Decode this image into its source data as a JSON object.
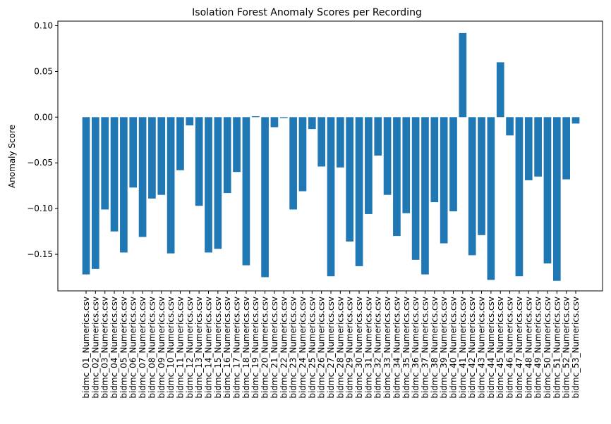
{
  "chart_data": {
    "type": "bar",
    "title": "Isolation Forest Anomaly Scores per Recording",
    "xlabel": "",
    "ylabel": "Anomaly Score",
    "ylim": [
      -0.19,
      0.105
    ],
    "yticks": [
      0.1,
      0.05,
      0.0,
      -0.05,
      -0.1,
      -0.15
    ],
    "ytick_labels": [
      "0.10",
      "0.05",
      "0.00",
      "−0.05",
      "−0.10",
      "−0.15"
    ],
    "grid": false,
    "bar_color": "#1f77b4",
    "categories": [
      "bidmc_01_Numerics.csv",
      "bidmc_02_Numerics.csv",
      "bidmc_03_Numerics.csv",
      "bidmc_04_Numerics.csv",
      "bidmc_05_Numerics.csv",
      "bidmc_06_Numerics.csv",
      "bidmc_07_Numerics.csv",
      "bidmc_08_Numerics.csv",
      "bidmc_09_Numerics.csv",
      "bidmc_10_Numerics.csv",
      "bidmc_11_Numerics.csv",
      "bidmc_12_Numerics.csv",
      "bidmc_13_Numerics.csv",
      "bidmc_14_Numerics.csv",
      "bidmc_15_Numerics.csv",
      "bidmc_16_Numerics.csv",
      "bidmc_17_Numerics.csv",
      "bidmc_18_Numerics.csv",
      "bidmc_19_Numerics.csv",
      "bidmc_20_Numerics.csv",
      "bidmc_21_Numerics.csv",
      "bidmc_22_Numerics.csv",
      "bidmc_23_Numerics.csv",
      "bidmc_24_Numerics.csv",
      "bidmc_25_Numerics.csv",
      "bidmc_26_Numerics.csv",
      "bidmc_27_Numerics.csv",
      "bidmc_28_Numerics.csv",
      "bidmc_29_Numerics.csv",
      "bidmc_30_Numerics.csv",
      "bidmc_31_Numerics.csv",
      "bidmc_32_Numerics.csv",
      "bidmc_33_Numerics.csv",
      "bidmc_34_Numerics.csv",
      "bidmc_35_Numerics.csv",
      "bidmc_36_Numerics.csv",
      "bidmc_37_Numerics.csv",
      "bidmc_38_Numerics.csv",
      "bidmc_39_Numerics.csv",
      "bidmc_40_Numerics.csv",
      "bidmc_41_Numerics.csv",
      "bidmc_42_Numerics.csv",
      "bidmc_43_Numerics.csv",
      "bidmc_44_Numerics.csv",
      "bidmc_45_Numerics.csv",
      "bidmc_46_Numerics.csv",
      "bidmc_47_Numerics.csv",
      "bidmc_48_Numerics.csv",
      "bidmc_49_Numerics.csv",
      "bidmc_50_Numerics.csv",
      "bidmc_51_Numerics.csv",
      "bidmc_52_Numerics.csv",
      "bidmc_53_Numerics.csv"
    ],
    "values": [
      -0.172,
      -0.166,
      -0.101,
      -0.125,
      -0.148,
      -0.077,
      -0.131,
      -0.089,
      -0.085,
      -0.149,
      -0.058,
      -0.009,
      -0.097,
      -0.148,
      -0.144,
      -0.083,
      -0.06,
      -0.162,
      0.001,
      -0.175,
      -0.011,
      -0.001,
      -0.101,
      -0.081,
      -0.013,
      -0.054,
      -0.174,
      -0.055,
      -0.136,
      -0.163,
      -0.106,
      -0.042,
      -0.085,
      -0.13,
      -0.105,
      -0.156,
      -0.172,
      -0.093,
      -0.138,
      -0.103,
      0.092,
      -0.151,
      -0.129,
      -0.178,
      0.06,
      -0.02,
      -0.174,
      -0.069,
      -0.065,
      -0.16,
      -0.179,
      -0.068,
      -0.007
    ]
  }
}
